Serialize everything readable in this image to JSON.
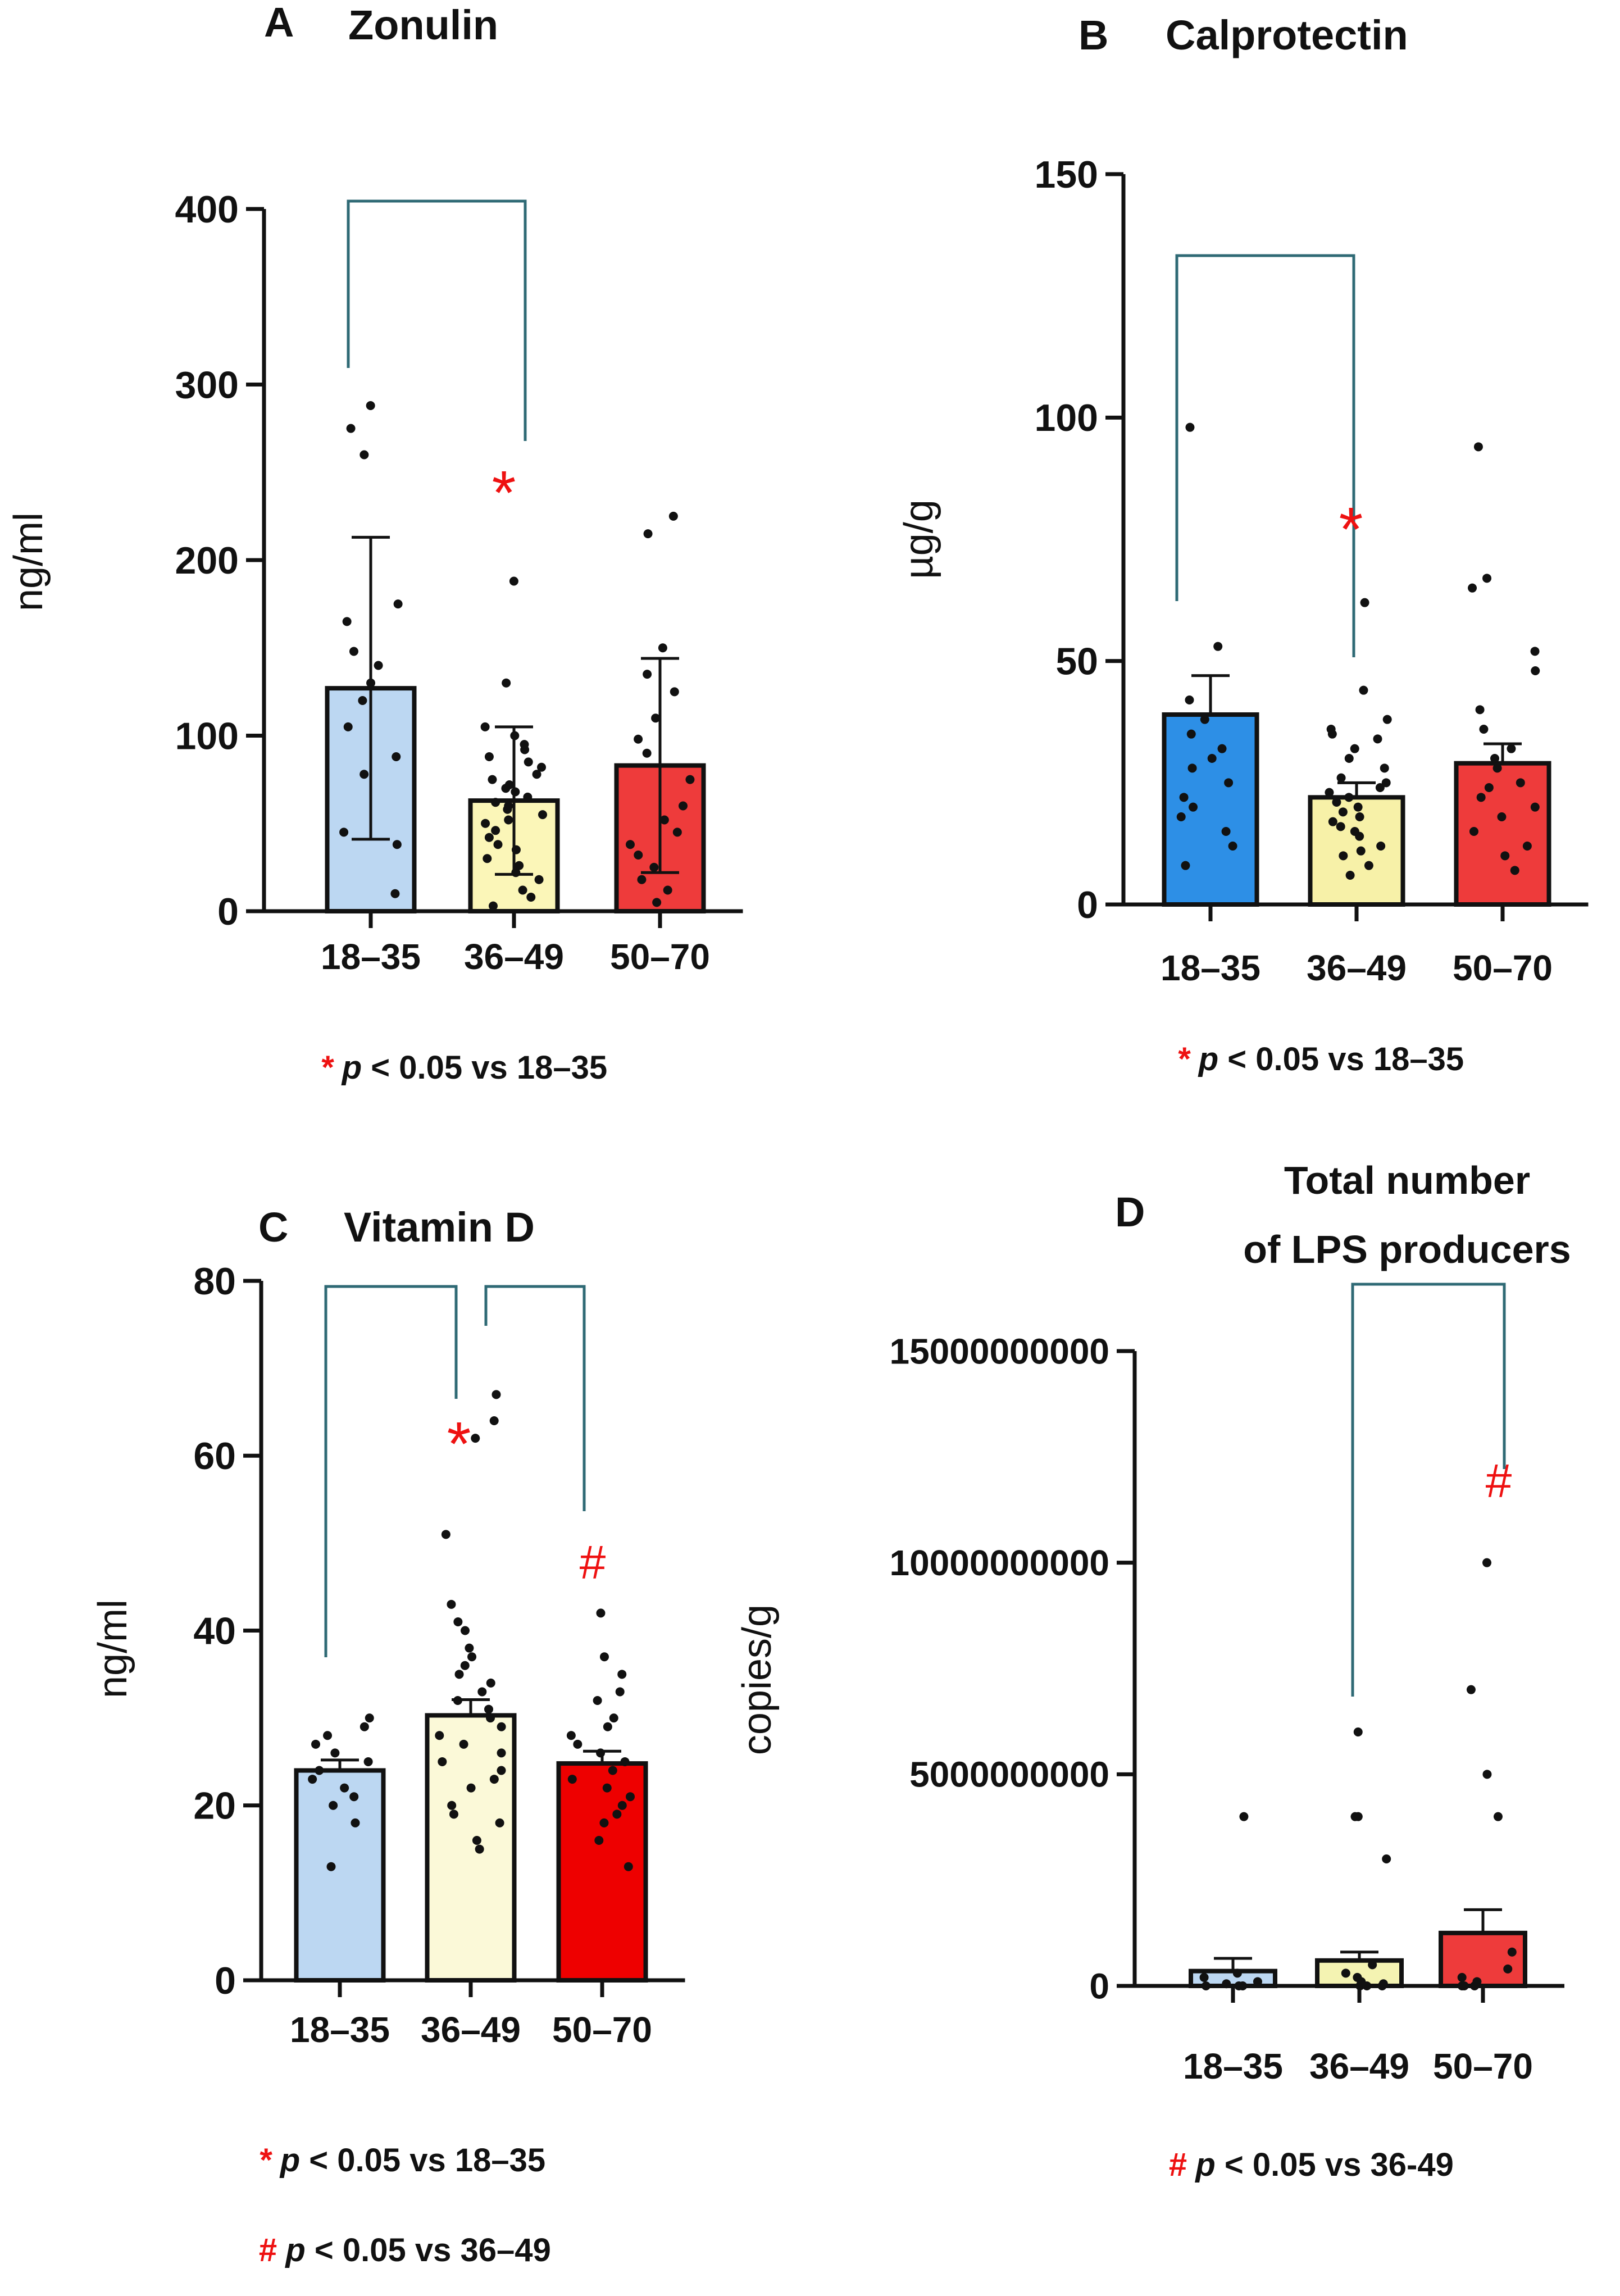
{
  "chart_data": [
    {
      "panel_letter": "A",
      "title": "Zonulin",
      "type": "bar",
      "categories": [
        "18–35",
        "36–49",
        "50–70"
      ],
      "values": [
        127,
        63,
        83
      ],
      "errors": [
        86,
        42,
        61
      ],
      "colors": [
        "#bcd7f2",
        "#fbf6b8",
        "#ee3b3b"
      ],
      "ylabel": "ng/ml",
      "ylim": [
        0,
        400
      ],
      "yticks": [
        0,
        100,
        200,
        300,
        400
      ],
      "ytick_labels": [
        "0",
        "100",
        "200",
        "300",
        "400"
      ],
      "points": [
        [
          10,
          38,
          45,
          78,
          88,
          105,
          120,
          130,
          140,
          148,
          165,
          175,
          260,
          275,
          288
        ],
        [
          3,
          8,
          12,
          18,
          22,
          26,
          30,
          35,
          38,
          42,
          46,
          50,
          52,
          55,
          58,
          60,
          62,
          65,
          68,
          70,
          72,
          75,
          78,
          82,
          85,
          88,
          92,
          95,
          100,
          105,
          130,
          188
        ],
        [
          5,
          12,
          18,
          25,
          32,
          38,
          45,
          52,
          60,
          75,
          90,
          98,
          110,
          125,
          135,
          150,
          215,
          225
        ]
      ],
      "significance": [
        {
          "from": 0,
          "to": 1,
          "symbol": "*"
        }
      ],
      "footnotes": [
        {
          "symbol": "*",
          "text": "p < 0.05 vs 18–35"
        }
      ]
    },
    {
      "panel_letter": "B",
      "title": "Calprotectin",
      "type": "bar",
      "categories": [
        "18–35",
        "36–49",
        "50–70"
      ],
      "values": [
        39,
        22,
        29
      ],
      "errors": [
        8,
        3,
        4
      ],
      "colors": [
        "#2d8fe6",
        "#f7f1a8",
        "#ee3b3b"
      ],
      "ylabel": "µg/g",
      "ylim": [
        0,
        150
      ],
      "yticks": [
        0,
        50,
        100,
        150
      ],
      "ytick_labels": [
        "0",
        "50",
        "100",
        "150"
      ],
      "points": [
        [
          8,
          12,
          15,
          18,
          20,
          22,
          25,
          28,
          30,
          32,
          35,
          38,
          42,
          53,
          98
        ],
        [
          6,
          8,
          10,
          11,
          12,
          14,
          15,
          16,
          17,
          18,
          19,
          20,
          21,
          22,
          23,
          24,
          25,
          26,
          28,
          30,
          32,
          34,
          35,
          36,
          38,
          44,
          62
        ],
        [
          7,
          10,
          12,
          15,
          18,
          20,
          22,
          24,
          25,
          28,
          30,
          32,
          36,
          40,
          48,
          52,
          65,
          67,
          94
        ]
      ],
      "significance": [
        {
          "from": 0,
          "to": 1,
          "symbol": "*"
        }
      ],
      "footnotes": [
        {
          "symbol": "*",
          "text": "p < 0.05 vs 18–35"
        }
      ]
    },
    {
      "panel_letter": "C",
      "title": "Vitamin D",
      "type": "bar",
      "categories": [
        "18–35",
        "36–49",
        "50–70"
      ],
      "values": [
        24,
        30.3,
        24.8
      ],
      "errors": [
        1.2,
        1.8,
        1.4
      ],
      "colors": [
        "#bcd7f2",
        "#fbf9d8",
        "#ee0000"
      ],
      "ylabel": "ng/ml",
      "ylim": [
        0,
        80
      ],
      "yticks": [
        0,
        20,
        40,
        60,
        80
      ],
      "ytick_labels": [
        "0",
        "20",
        "40",
        "60",
        "80"
      ],
      "points": [
        [
          13,
          18,
          20,
          21,
          22,
          23,
          24,
          25,
          26,
          27,
          28,
          29,
          30
        ],
        [
          15,
          16,
          18,
          19,
          20,
          22,
          23,
          24,
          25,
          26,
          27,
          28,
          29,
          30,
          31,
          32,
          33,
          34,
          35,
          36,
          37,
          38,
          40,
          41,
          43,
          51,
          62,
          64,
          67
        ],
        [
          13,
          16,
          18,
          19,
          20,
          21,
          22,
          23,
          24,
          25,
          26,
          27,
          28,
          29,
          30,
          32,
          33,
          35,
          37,
          42
        ]
      ],
      "significance": [
        {
          "from": 0,
          "to": 1,
          "symbol": "*"
        },
        {
          "from": 1,
          "to": 2,
          "symbol": "#"
        }
      ],
      "footnotes": [
        {
          "symbol": "*",
          "text": "p < 0.05 vs 18–35"
        },
        {
          "symbol": "#",
          "text": "p < 0.05 vs 36–49"
        }
      ]
    },
    {
      "panel_letter": "D",
      "title": "Total number",
      "title_line2": "of LPS producers",
      "type": "bar",
      "categories": [
        "18–35",
        "36–49",
        "50–70"
      ],
      "values": [
        350000000,
        600000000,
        1250000000
      ],
      "errors": [
        300000000,
        200000000,
        550000000
      ],
      "colors": [
        "#bcd7f2",
        "#f4f3b2",
        "#ee3b3b"
      ],
      "ylabel": "copies/g",
      "ylim": [
        0,
        15000000000
      ],
      "yticks": [
        0,
        5000000000,
        10000000000,
        15000000000
      ],
      "ytick_labels": [
        "0",
        "5000000000",
        "10000000000",
        "15000000000"
      ],
      "points": [
        [
          0,
          0,
          0,
          50000000,
          100000000,
          200000000,
          300000000,
          4000000000
        ],
        [
          0,
          0,
          0,
          50000000,
          100000000,
          200000000,
          300000000,
          500000000,
          3000000000,
          4000000000,
          4000000000,
          6000000000
        ],
        [
          0,
          0,
          0,
          100000000,
          200000000,
          400000000,
          800000000,
          4000000000,
          5000000000,
          7000000000,
          10000000000
        ]
      ],
      "significance": [
        {
          "from": 1,
          "to": 2,
          "symbol": "#"
        }
      ],
      "footnotes": [
        {
          "symbol": "#",
          "text": "p < 0.05 vs 36-49"
        }
      ]
    }
  ]
}
